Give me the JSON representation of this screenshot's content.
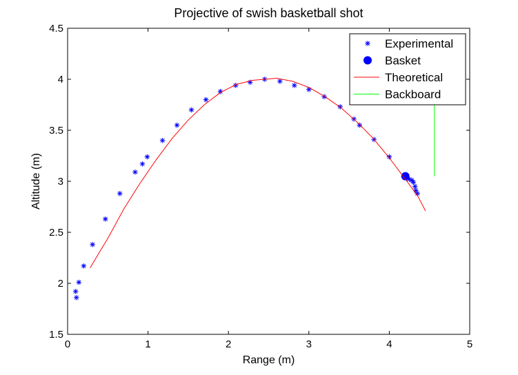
{
  "chart_data": {
    "type": "scatter",
    "title": "Projective of swish basketball shot",
    "xlabel": "Range (m)",
    "ylabel": "Altitude (m)",
    "xlim": [
      0,
      5
    ],
    "ylim": [
      1.5,
      4.5
    ],
    "xticks": [
      0,
      1,
      2,
      3,
      4,
      5
    ],
    "yticks": [
      1.5,
      2,
      2.5,
      3,
      3.5,
      4,
      4.5
    ],
    "xtick_labels": [
      "0",
      "1",
      "2",
      "3",
      "4",
      "5"
    ],
    "ytick_labels": [
      "1.5",
      "2",
      "2.5",
      "3",
      "3.5",
      "4",
      "4.5"
    ],
    "grid": false,
    "legend_position": "top-right",
    "series": [
      {
        "name": "Experimental",
        "kind": "scatter",
        "marker": "asterisk",
        "color": "#0000ff",
        "points": [
          [
            0.11,
            1.86
          ],
          [
            0.1,
            1.92
          ],
          [
            0.14,
            2.01
          ],
          [
            0.2,
            2.17
          ],
          [
            0.31,
            2.38
          ],
          [
            0.47,
            2.63
          ],
          [
            0.65,
            2.88
          ],
          [
            0.84,
            3.09
          ],
          [
            0.93,
            3.17
          ],
          [
            0.99,
            3.24
          ],
          [
            1.18,
            3.4
          ],
          [
            1.36,
            3.55
          ],
          [
            1.54,
            3.7
          ],
          [
            1.72,
            3.8
          ],
          [
            1.9,
            3.88
          ],
          [
            2.09,
            3.94
          ],
          [
            2.27,
            3.97
          ],
          [
            2.45,
            4.0
          ],
          [
            2.64,
            3.98
          ],
          [
            2.82,
            3.94
          ],
          [
            3.0,
            3.9
          ],
          [
            3.19,
            3.83
          ],
          [
            3.39,
            3.73
          ],
          [
            3.56,
            3.61
          ],
          [
            3.63,
            3.55
          ],
          [
            3.81,
            3.41
          ],
          [
            4.0,
            3.24
          ],
          [
            4.18,
            3.05
          ],
          [
            4.22,
            3.03
          ],
          [
            4.25,
            3.02
          ],
          [
            4.28,
            3.01
          ],
          [
            4.3,
            2.99
          ],
          [
            4.32,
            2.95
          ],
          [
            4.33,
            2.91
          ],
          [
            4.35,
            2.88
          ]
        ]
      },
      {
        "name": "Basket",
        "kind": "scatter",
        "marker": "circle",
        "color": "#0000ff",
        "points": [
          [
            4.2,
            3.05
          ]
        ]
      },
      {
        "name": "Theoretical",
        "kind": "line",
        "color": "#ff0000",
        "points": [
          [
            0.28,
            2.15
          ],
          [
            0.4,
            2.31
          ],
          [
            0.5,
            2.44
          ],
          [
            0.7,
            2.73
          ],
          [
            0.9,
            2.98
          ],
          [
            1.1,
            3.21
          ],
          [
            1.3,
            3.42
          ],
          [
            1.5,
            3.6
          ],
          [
            1.7,
            3.75
          ],
          [
            1.9,
            3.87
          ],
          [
            2.1,
            3.95
          ],
          [
            2.3,
            3.99
          ],
          [
            2.45,
            4.0
          ],
          [
            2.6,
            4.01
          ],
          [
            2.8,
            3.98
          ],
          [
            3.0,
            3.92
          ],
          [
            3.2,
            3.83
          ],
          [
            3.4,
            3.72
          ],
          [
            3.6,
            3.58
          ],
          [
            3.8,
            3.42
          ],
          [
            4.0,
            3.23
          ],
          [
            4.2,
            3.02
          ],
          [
            4.35,
            2.86
          ],
          [
            4.45,
            2.71
          ]
        ]
      },
      {
        "name": "Backboard",
        "kind": "line",
        "color": "#00ff00",
        "points": [
          [
            4.56,
            3.05
          ],
          [
            4.56,
            4.02
          ]
        ]
      }
    ]
  }
}
